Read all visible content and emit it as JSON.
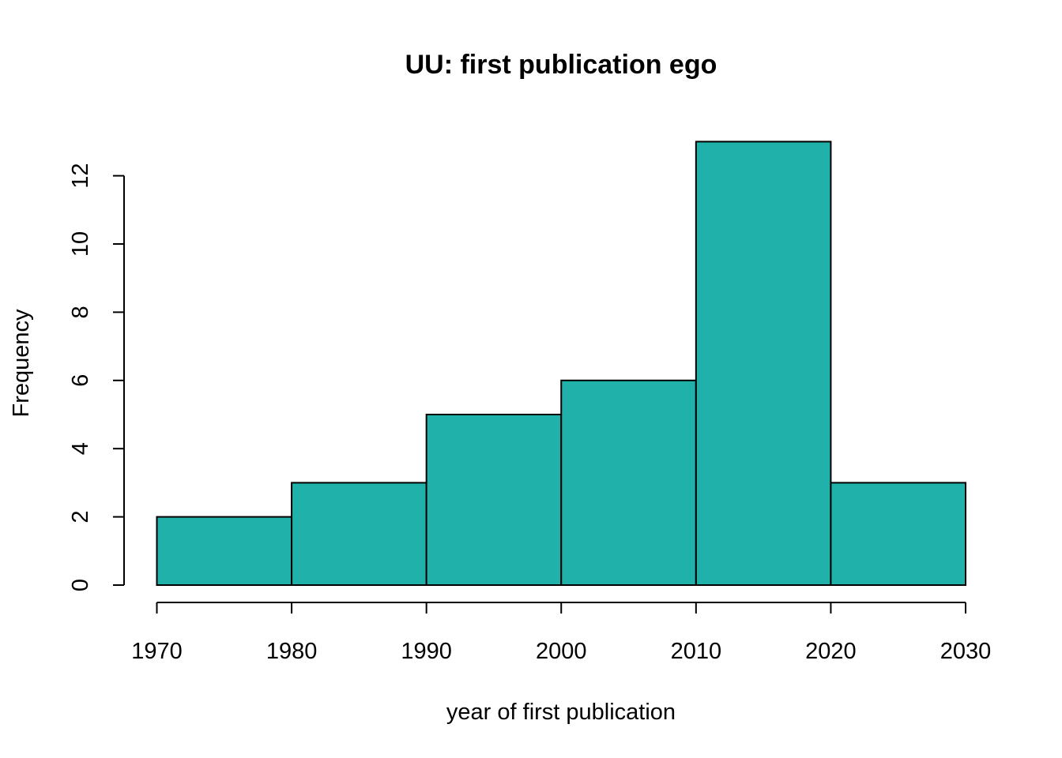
{
  "chart_data": {
    "type": "bar",
    "title": "UU: first publication ego",
    "xlabel": "year of first publication",
    "ylabel": "Frequency",
    "bins": [
      {
        "start": 1970,
        "end": 1980,
        "count": 2
      },
      {
        "start": 1980,
        "end": 1990,
        "count": 3
      },
      {
        "start": 1990,
        "end": 2000,
        "count": 5
      },
      {
        "start": 2000,
        "end": 2010,
        "count": 6
      },
      {
        "start": 2010,
        "end": 2020,
        "count": 13
      },
      {
        "start": 2020,
        "end": 2030,
        "count": 3
      }
    ],
    "xlim": [
      1970,
      2030
    ],
    "ylim": [
      0,
      13
    ],
    "xticks": [
      "1970",
      "1980",
      "1990",
      "2000",
      "2010",
      "2020",
      "2030"
    ],
    "yticks": [
      "0",
      "2",
      "4",
      "6",
      "8",
      "10",
      "12"
    ],
    "bar_color": "#20B2AA",
    "grid": false,
    "legend": "none"
  }
}
